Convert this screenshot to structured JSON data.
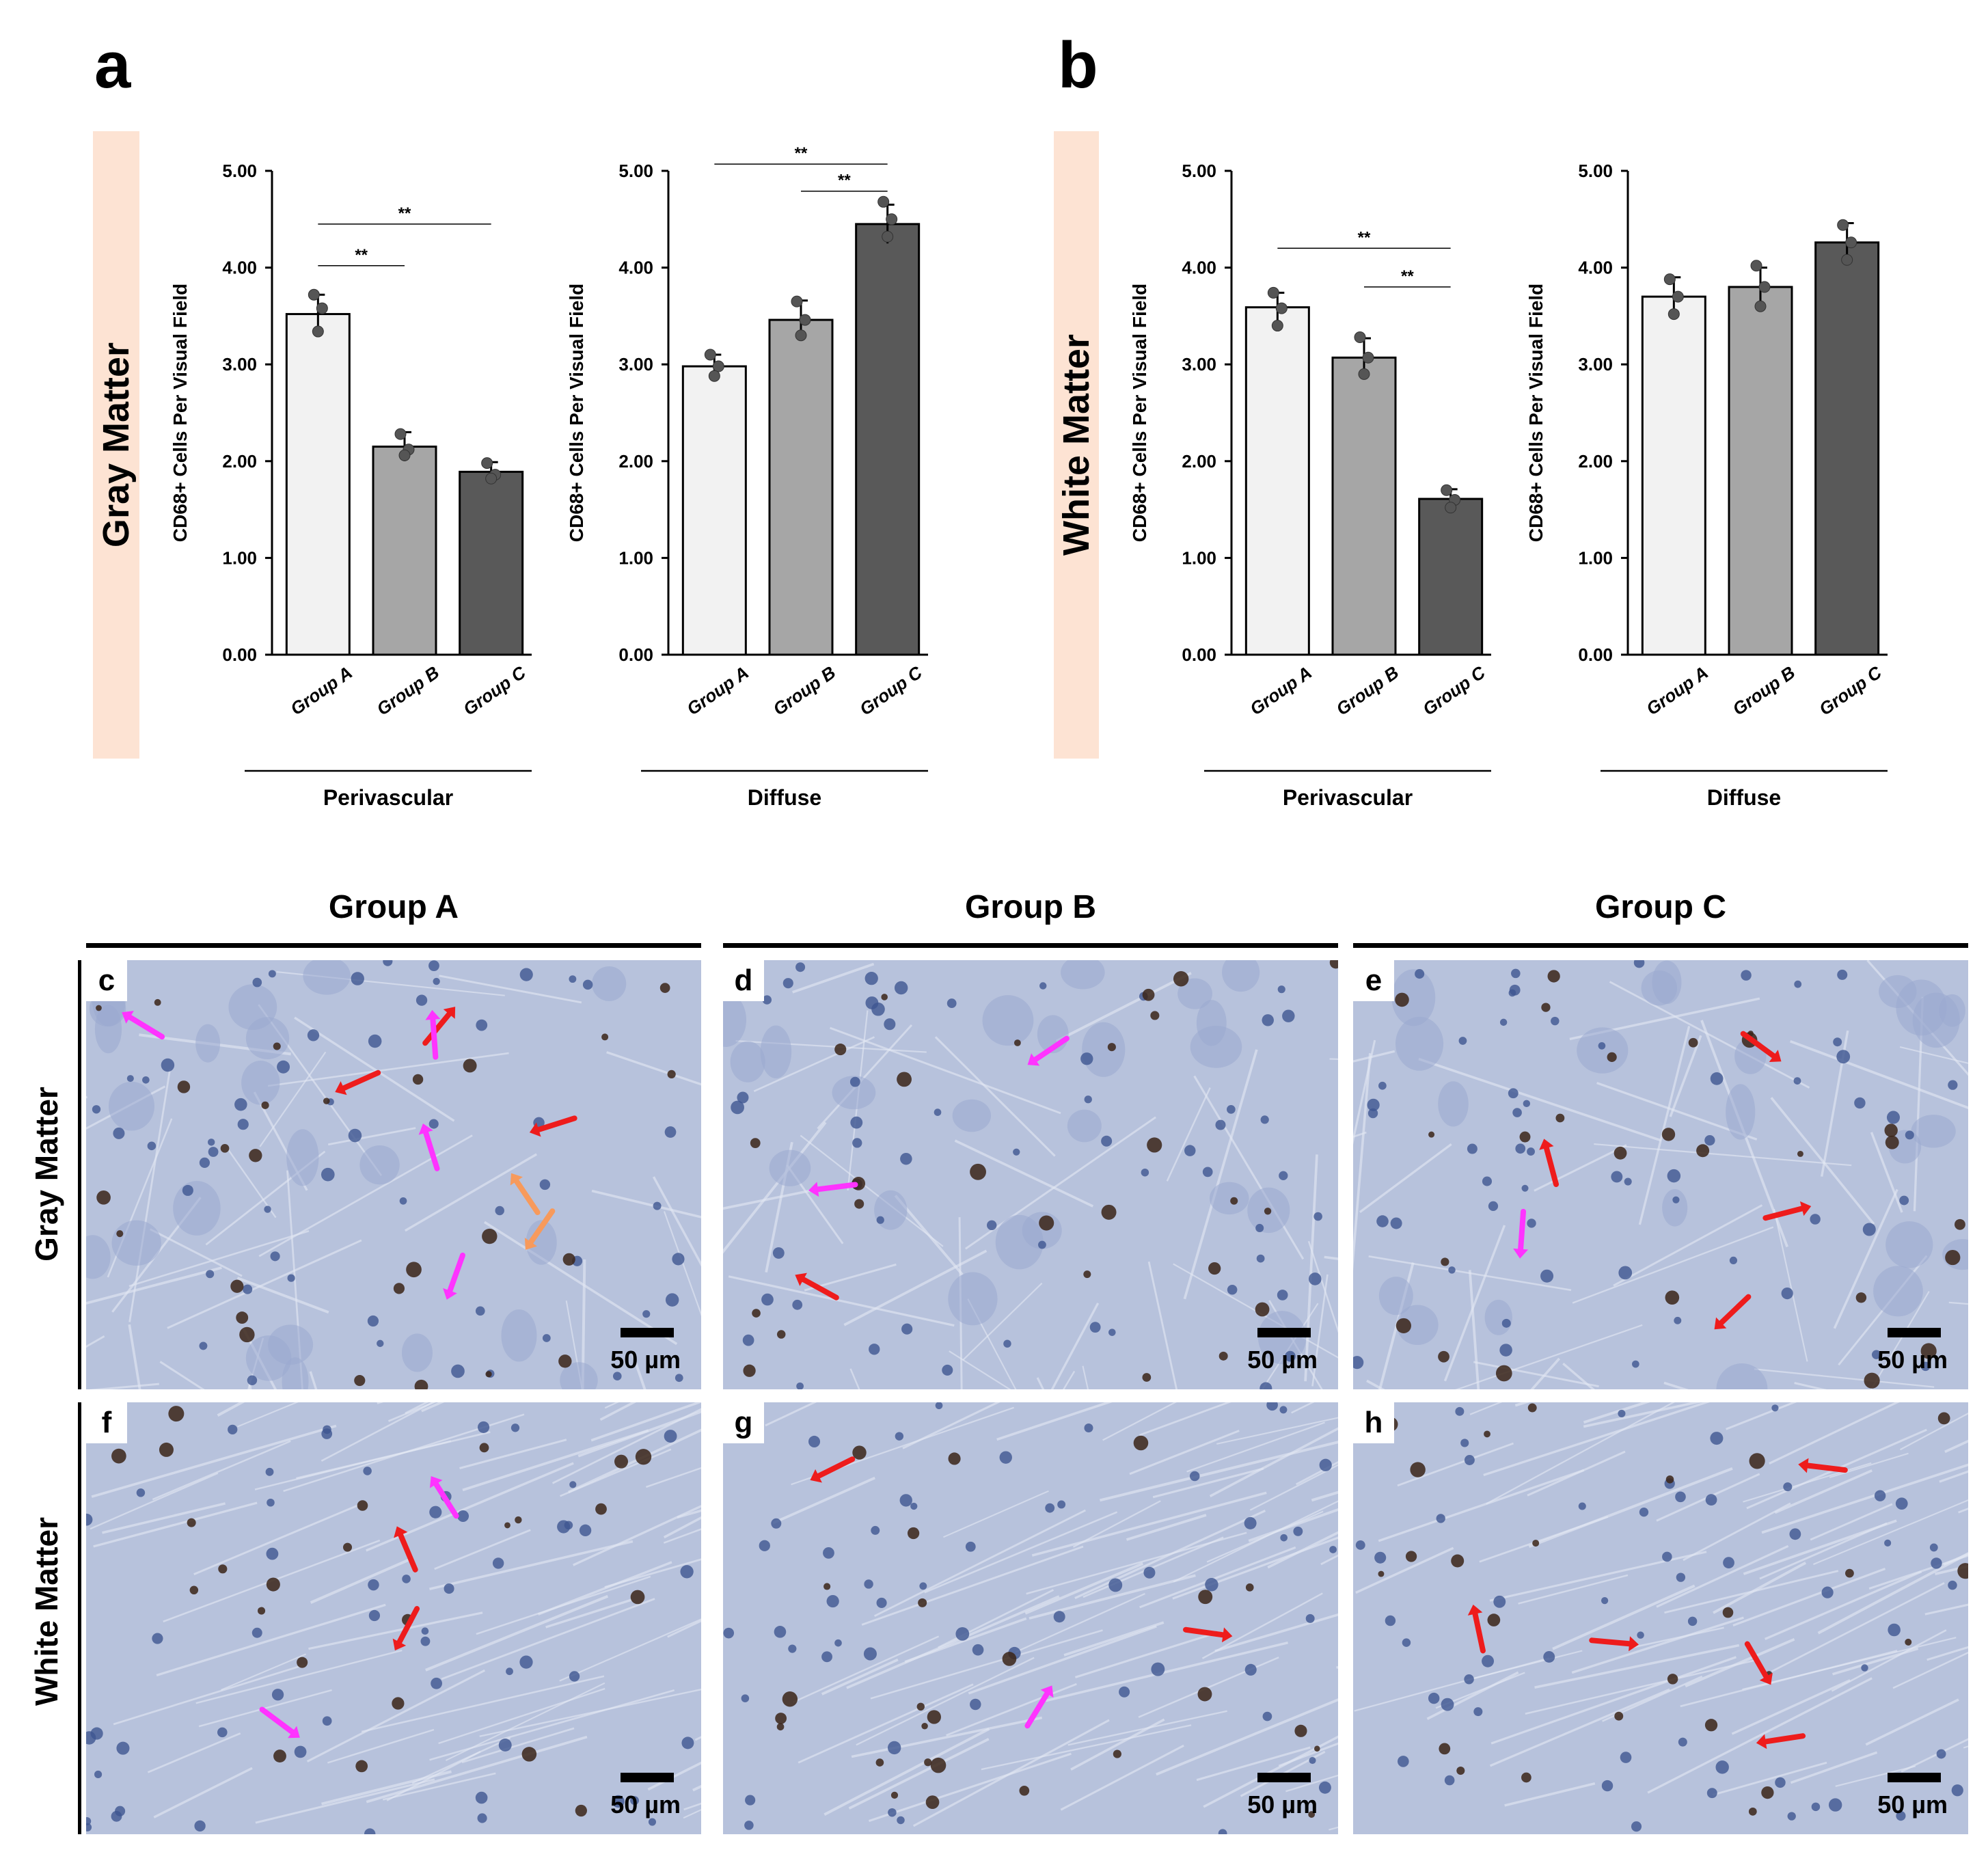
{
  "panel_letters": {
    "a": "a",
    "b": "b"
  },
  "side_labels": {
    "gray": "Gray Matter",
    "white": "White Matter"
  },
  "chart_data": [
    {
      "id": "a1",
      "type": "bar",
      "categories": [
        "Group A",
        "Group B",
        "Group C"
      ],
      "values": [
        3.52,
        2.15,
        1.89
      ],
      "errors": [
        0.2,
        0.15,
        0.1
      ],
      "points": [
        [
          3.72,
          3.58,
          3.34
        ],
        [
          2.28,
          2.12,
          2.06
        ],
        [
          1.98,
          1.86,
          1.82
        ]
      ],
      "colors": [
        "#f2f2f2",
        "#a6a6a6",
        "#595959"
      ],
      "ylabel": "CD68+ Cells Per Visual Field",
      "ylim": [
        0,
        5
      ],
      "yticks": [
        "0.00",
        "1.00",
        "2.00",
        "3.00",
        "4.00",
        "5.00"
      ],
      "group_label": "Perivascular",
      "significance": [
        {
          "from": 0,
          "to": 1,
          "label": "**",
          "y": 4.02
        },
        {
          "from": 0,
          "to": 2,
          "label": "**",
          "y": 4.45
        }
      ]
    },
    {
      "id": "a2",
      "type": "bar",
      "categories": [
        "Group A",
        "Group B",
        "Group C"
      ],
      "values": [
        2.98,
        3.46,
        4.45
      ],
      "errors": [
        0.12,
        0.2,
        0.2
      ],
      "points": [
        [
          3.1,
          2.98,
          2.88
        ],
        [
          3.65,
          3.46,
          3.3
        ],
        [
          4.68,
          4.5,
          4.32
        ]
      ],
      "colors": [
        "#f2f2f2",
        "#a6a6a6",
        "#595959"
      ],
      "ylabel": "CD68+ Cells Per Visual Field",
      "ylim": [
        0,
        5
      ],
      "yticks": [
        "0.00",
        "1.00",
        "2.00",
        "3.00",
        "4.00",
        "5.00"
      ],
      "group_label": "Diffuse",
      "significance": [
        {
          "from": 0,
          "to": 2,
          "label": "**",
          "y": 5.07
        },
        {
          "from": 1,
          "to": 2,
          "label": "**",
          "y": 4.79
        }
      ]
    },
    {
      "id": "b1",
      "type": "bar",
      "categories": [
        "Group A",
        "Group B",
        "Group C"
      ],
      "values": [
        3.59,
        3.07,
        1.61
      ],
      "errors": [
        0.15,
        0.2,
        0.1
      ],
      "points": [
        [
          3.74,
          3.58,
          3.4
        ],
        [
          3.28,
          3.07,
          2.9
        ],
        [
          1.7,
          1.6,
          1.52
        ]
      ],
      "colors": [
        "#f2f2f2",
        "#a6a6a6",
        "#595959"
      ],
      "ylabel": "CD68+ Cells Per Visual Field",
      "ylim": [
        0,
        5
      ],
      "yticks": [
        "0.00",
        "1.00",
        "2.00",
        "3.00",
        "4.00",
        "5.00"
      ],
      "group_label": "Perivascular",
      "significance": [
        {
          "from": 0,
          "to": 2,
          "label": "**",
          "y": 4.2
        },
        {
          "from": 1,
          "to": 2,
          "label": "**",
          "y": 3.8
        }
      ]
    },
    {
      "id": "b2",
      "type": "bar",
      "categories": [
        "Group A",
        "Group B",
        "Group C"
      ],
      "values": [
        3.7,
        3.8,
        4.26
      ],
      "errors": [
        0.2,
        0.2,
        0.2
      ],
      "points": [
        [
          3.88,
          3.7,
          3.52
        ],
        [
          4.02,
          3.8,
          3.6
        ],
        [
          4.44,
          4.26,
          4.08
        ]
      ],
      "colors": [
        "#f2f2f2",
        "#a6a6a6",
        "#595959"
      ],
      "ylabel": "CD68+ Cells Per Visual Field",
      "ylim": [
        0,
        5
      ],
      "yticks": [
        "0.00",
        "1.00",
        "2.00",
        "3.00",
        "4.00",
        "5.00"
      ],
      "group_label": "Diffuse",
      "significance": []
    }
  ],
  "micrographs": {
    "column_headers": [
      "Group A",
      "Group B",
      "Group C"
    ],
    "row_headers": [
      "Gray Matter",
      "White Matter"
    ],
    "scale_label": "50 µm",
    "panels": [
      {
        "label": "c",
        "red": 3,
        "magenta": 4,
        "orange": 2
      },
      {
        "label": "d",
        "red": 1,
        "magenta": 2,
        "orange": 0
      },
      {
        "label": "e",
        "red": 4,
        "magenta": 1,
        "orange": 0
      },
      {
        "label": "f",
        "red": 2,
        "magenta": 2,
        "orange": 0
      },
      {
        "label": "g",
        "red": 2,
        "magenta": 1,
        "orange": 0
      },
      {
        "label": "h",
        "red": 5,
        "magenta": 0,
        "orange": 0
      }
    ],
    "arrow_colors": {
      "red": "#ee1c1c",
      "magenta": "#ff33ff",
      "orange": "#f79a5c"
    }
  }
}
